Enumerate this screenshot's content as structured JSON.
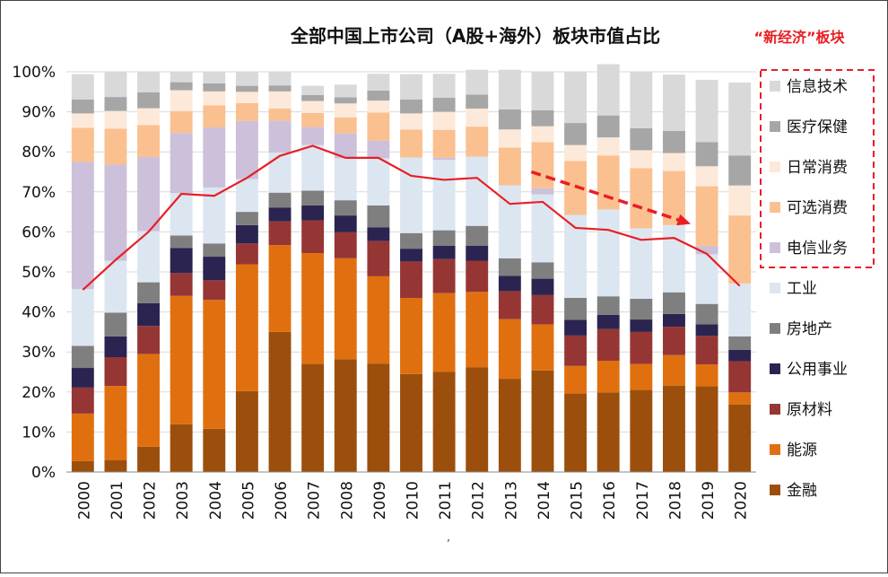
{
  "chart_data": {
    "type": "bar",
    "stacked": true,
    "normalized": true,
    "title": "全部中国上市公司（A股+海外）板块市值占比",
    "categories": [
      "2000",
      "2001",
      "2002",
      "2003",
      "2004",
      "2005",
      "2006",
      "2007",
      "2008",
      "2009",
      "2010",
      "2011",
      "2012",
      "2013",
      "2014",
      "2015",
      "2016",
      "2017",
      "2018",
      "2019",
      "2020"
    ],
    "ylim": [
      0,
      100
    ],
    "yticks": [
      "0%",
      "10%",
      "20%",
      "30%",
      "40%",
      "50%",
      "60%",
      "70%",
      "80%",
      "90%",
      "100%"
    ],
    "series": [
      {
        "name": "金融",
        "color": "#9c4f0c",
        "values": [
          2.7,
          3.0,
          6.3,
          11.9,
          10.8,
          20.2,
          35.0,
          27.0,
          28.2,
          27.1,
          24.5,
          25.0,
          26.2,
          23.3,
          25.4,
          19.6,
          19.9,
          20.5,
          21.6,
          21.4,
          16.9
        ]
      },
      {
        "name": "能源",
        "color": "#e0700f",
        "values": [
          11.9,
          18.5,
          23.2,
          32.1,
          32.2,
          31.7,
          21.7,
          27.7,
          25.2,
          21.8,
          19.0,
          19.7,
          18.8,
          14.9,
          11.5,
          6.9,
          7.9,
          6.5,
          7.6,
          5.5,
          3.0
        ]
      },
      {
        "name": "原材料",
        "color": "#963634",
        "values": [
          6.5,
          7.2,
          7.0,
          5.7,
          4.9,
          5.2,
          5.9,
          8.2,
          6.5,
          8.8,
          9.1,
          8.5,
          7.8,
          7.0,
          7.3,
          7.6,
          7.9,
          8.0,
          7.1,
          7.1,
          7.8
        ]
      },
      {
        "name": "公用事业",
        "color": "#2b2450",
        "values": [
          4.9,
          5.2,
          5.7,
          6.3,
          5.9,
          4.6,
          3.5,
          3.7,
          4.2,
          3.4,
          3.2,
          3.3,
          3.7,
          3.8,
          4.1,
          3.9,
          3.6,
          3.1,
          3.2,
          2.9,
          2.8
        ]
      },
      {
        "name": "房地产",
        "color": "#7f7f7f",
        "values": [
          5.5,
          5.9,
          5.2,
          3.1,
          3.3,
          3.3,
          3.7,
          3.7,
          3.8,
          5.5,
          3.9,
          3.9,
          5.0,
          4.4,
          4.1,
          5.5,
          4.6,
          5.2,
          5.4,
          5.1,
          3.4
        ]
      },
      {
        "name": "工业",
        "color": "#dce6f1",
        "values": [
          14.2,
          13.0,
          12.8,
          10.6,
          14.0,
          8.2,
          10.0,
          11.4,
          10.5,
          11.8,
          18.9,
          17.6,
          17.3,
          18.2,
          17.0,
          20.7,
          21.7,
          17.6,
          16.8,
          12.4,
          13.2
        ]
      },
      {
        "name": "电信业务",
        "color": "#ccc0da",
        "values": [
          31.8,
          24.0,
          18.5,
          15.0,
          15.0,
          14.5,
          8.0,
          4.5,
          6.2,
          4.4,
          0.0,
          0.5,
          0.0,
          0.0,
          1.5,
          0.0,
          0.0,
          0.0,
          0.0,
          2.0,
          0.0
        ]
      },
      {
        "name": "可选消费",
        "color": "#fac090",
        "values": [
          8.5,
          9.0,
          8.0,
          5.5,
          5.5,
          4.5,
          3.0,
          3.5,
          4.0,
          7.0,
          7.0,
          7.0,
          7.5,
          9.5,
          11.5,
          13.5,
          13.5,
          15.0,
          13.5,
          15.0,
          17.0
        ]
      },
      {
        "name": "日常消费",
        "color": "#fde9d9",
        "values": [
          3.6,
          4.4,
          4.2,
          5.2,
          3.5,
          2.8,
          4.3,
          3.0,
          3.5,
          3.0,
          4.0,
          4.5,
          4.5,
          4.5,
          4.0,
          4.0,
          4.5,
          4.5,
          4.5,
          5.0,
          7.5
        ]
      },
      {
        "name": "医疗保健",
        "color": "#a6a6a6",
        "values": [
          3.5,
          3.5,
          4.0,
          2.0,
          2.0,
          1.5,
          1.5,
          1.5,
          1.5,
          2.5,
          3.5,
          3.5,
          3.5,
          5.0,
          4.0,
          5.5,
          5.5,
          5.5,
          5.5,
          6.0,
          7.5
        ]
      },
      {
        "name": "信息技术",
        "color": "#d9d9d9",
        "values": [
          6.3,
          6.3,
          5.1,
          2.6,
          2.9,
          3.5,
          3.4,
          2.3,
          3.2,
          4.2,
          6.3,
          6.0,
          6.2,
          9.9,
          9.6,
          12.8,
          12.8,
          14.1,
          14.1,
          15.6,
          18.2
        ]
      }
    ],
    "line": {
      "color": "#e81e25",
      "values": [
        45.5,
        53.0,
        60.0,
        69.5,
        69.0,
        73.5,
        79.0,
        81.5,
        78.5,
        78.5,
        74.0,
        73.0,
        73.5,
        67.0,
        67.5,
        61.0,
        60.5,
        58.0,
        58.5,
        54.5,
        46.5
      ]
    },
    "annotation": {
      "title": "“新经济”板块",
      "arrow_from": [
        "2013",
        75
      ],
      "arrow_to": [
        "2019",
        62
      ]
    },
    "legend_order": [
      "信息技术",
      "医疗保健",
      "日常消费",
      "可选消费",
      "电信业务",
      "工业",
      "房地产",
      "公用事业",
      "原材料",
      "能源",
      "金融"
    ],
    "boxed_legend": [
      "信息技术",
      "医疗保健",
      "日常消费",
      "可选消费",
      "电信业务"
    ],
    "footnote": "’"
  }
}
